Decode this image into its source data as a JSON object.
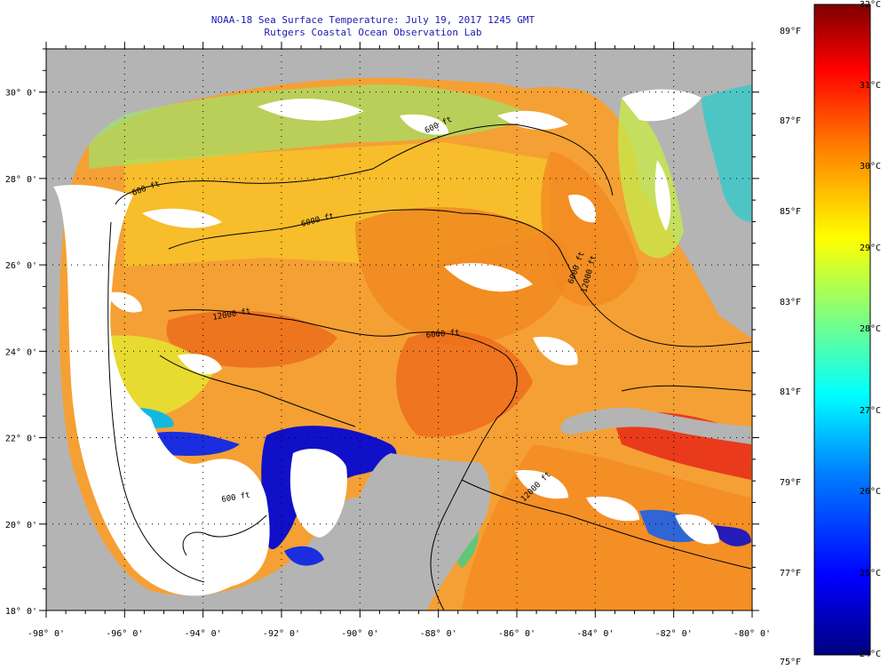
{
  "header": {
    "title": "NOAA-18 Sea Surface Temperature:  July 19, 2017 1245 GMT",
    "subtitle": "Rutgers Coastal Ocean Observation Lab"
  },
  "map": {
    "lon_range": [
      -98,
      -80
    ],
    "lat_range": [
      18,
      31
    ],
    "lon_ticks": [
      "-98° 0'",
      "-96° 0'",
      "-94° 0'",
      "-92° 0'",
      "-90° 0'",
      "-88° 0'",
      "-86° 0'",
      "-84° 0'",
      "-82° 0'",
      "-80° 0'"
    ],
    "lat_ticks": [
      "18° 0'",
      "20° 0'",
      "22° 0'",
      "24° 0'",
      "26° 0'",
      "28° 0'",
      "30° 0'"
    ],
    "contour_labels": [
      "600 ft",
      "600 ft",
      "6000 ft",
      "12000 ft",
      "12000 ft",
      "6000 ft",
      "6000 ft",
      "600 ft",
      "12000 ft"
    ],
    "land_color": "#b4b4b4",
    "cloud_color": "#ffffff"
  },
  "colorbar": {
    "celsius": [
      "32°C",
      "31°C",
      "30°C",
      "29°C",
      "28°C",
      "27°C",
      "26°C",
      "25°C",
      "24°C"
    ],
    "fahrenheit": [
      "89°F",
      "87°F",
      "85°F",
      "83°F",
      "81°F",
      "79°F",
      "77°F",
      "75°F"
    ],
    "range_c": [
      24,
      32
    ],
    "colors": [
      "#00007f",
      "#0000ff",
      "#007fff",
      "#00ffff",
      "#7fff7f",
      "#ffff00",
      "#ff7f00",
      "#ff0000",
      "#7f0000"
    ]
  }
}
